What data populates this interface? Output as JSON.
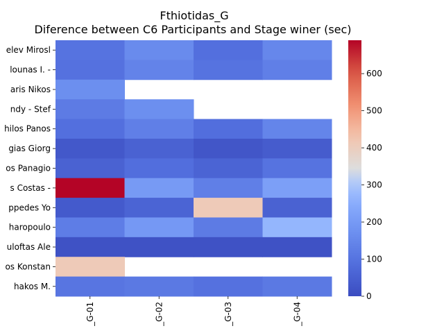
{
  "chart_data": {
    "type": "heatmap",
    "title": "Fthiotidas_G",
    "subtitle": "Diference between C6 Participants and Stage winer (sec)",
    "xlabel": "",
    "ylabel": "",
    "colormap": "coolwarm",
    "vmin": 0,
    "vmax": 690,
    "colorbar_ticks": [
      0,
      100,
      200,
      300,
      400,
      500,
      600
    ],
    "columns": [
      "_G-01",
      "_G-02",
      "_G-03",
      "_G-04"
    ],
    "rows": [
      "elev Mirosl",
      "lounas I.  -",
      "aris Nikos ",
      "ndy  - Stef",
      "hilos Panos",
      "gias Giorg",
      "os Panagio",
      "s Costas  -",
      "ppedes Yo",
      "haropoulo",
      "uloftas Ale",
      "os Konstan",
      "hakos M.  "
    ],
    "values": [
      [
        100,
        160,
        90,
        150
      ],
      [
        95,
        140,
        100,
        130
      ],
      [
        170,
        null,
        null,
        null
      ],
      [
        120,
        170,
        null,
        null
      ],
      [
        90,
        130,
        85,
        145
      ],
      [
        30,
        55,
        25,
        40
      ],
      [
        55,
        85,
        60,
        100
      ],
      [
        690,
        200,
        130,
        215
      ],
      [
        35,
        60,
        410,
        55
      ],
      [
        125,
        195,
        120,
        270
      ],
      [
        15,
        15,
        15,
        15
      ],
      [
        410,
        null,
        null,
        null
      ],
      [
        105,
        115,
        95,
        115
      ]
    ]
  }
}
